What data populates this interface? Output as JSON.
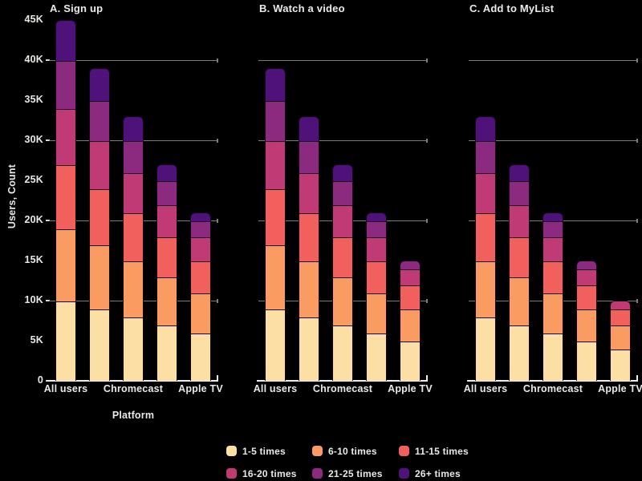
{
  "figure": {
    "background_color": "#000000",
    "text_color": "#e9e9e7"
  },
  "chart_data": {
    "type": "bar",
    "stacked": true,
    "grid": "horizontal",
    "legend_position": "bottom",
    "xlabel": "Platform",
    "ylabel": "Users, Count",
    "ylim": [
      0,
      45000
    ],
    "y_tick_labels": [
      "0",
      "5K",
      "10K",
      "15K",
      "20K",
      "25K",
      "30K",
      "35K",
      "40K",
      "45K"
    ],
    "gridlines_at": [
      10000,
      20000,
      30000,
      40000
    ],
    "x_tick_labels": [
      "All users",
      "Chromecast",
      "Apple TV"
    ],
    "legend": [
      "1-5 times",
      "6-10 times",
      "11-15 times",
      "16-20 times",
      "21-25 times",
      "26+ times"
    ],
    "colors": [
      "#fbdfa4",
      "#fa9b61",
      "#f1605d",
      "#c03a76",
      "#8c2a80",
      "#4f127b"
    ],
    "panels": [
      {
        "title": "A. Sign up",
        "bars": [
          {
            "label": "All users",
            "values": [
              10000,
              9000,
              8000,
              7000,
              6000,
              5000
            ],
            "total": 45000
          },
          {
            "label": "",
            "values": [
              9000,
              8000,
              7000,
              6000,
              5000,
              4000
            ],
            "total": 39000
          },
          {
            "label": "Chromecast",
            "values": [
              8000,
              7000,
              6000,
              5000,
              4000,
              3000
            ],
            "total": 33000
          },
          {
            "label": "",
            "values": [
              7000,
              6000,
              5000,
              4000,
              3000,
              2000
            ],
            "total": 27000
          },
          {
            "label": "Apple TV",
            "values": [
              6000,
              5000,
              4000,
              3000,
              2000,
              1000
            ],
            "total": 21000
          }
        ]
      },
      {
        "title": "B. Watch a video",
        "bars": [
          {
            "label": "All users",
            "values": [
              9000,
              8000,
              7000,
              6000,
              5000,
              4000
            ],
            "total": 39000
          },
          {
            "label": "",
            "values": [
              8000,
              7000,
              6000,
              5000,
              4000,
              3000
            ],
            "total": 33000
          },
          {
            "label": "Chromecast",
            "values": [
              7000,
              6000,
              5000,
              4000,
              3000,
              2000
            ],
            "total": 27000
          },
          {
            "label": "",
            "values": [
              6000,
              5000,
              4000,
              3000,
              2000,
              1000
            ],
            "total": 21000
          },
          {
            "label": "Apple TV",
            "values": [
              5000,
              4000,
              3000,
              2000,
              1000,
              0
            ],
            "total": 15000
          }
        ]
      },
      {
        "title": "C. Add to MyList",
        "bars": [
          {
            "label": "All users",
            "values": [
              8000,
              7000,
              6000,
              5000,
              4000,
              3000
            ],
            "total": 33000
          },
          {
            "label": "",
            "values": [
              7000,
              6000,
              5000,
              4000,
              3000,
              2000
            ],
            "total": 27000
          },
          {
            "label": "Chromecast",
            "values": [
              6000,
              5000,
              4000,
              3000,
              2000,
              1000
            ],
            "total": 21000
          },
          {
            "label": "",
            "values": [
              5000,
              4000,
              3000,
              2000,
              1000,
              0
            ],
            "total": 15000
          },
          {
            "label": "Apple TV",
            "values": [
              4000,
              3000,
              2000,
              1000,
              0,
              0
            ],
            "total": 10000
          }
        ]
      }
    ]
  }
}
